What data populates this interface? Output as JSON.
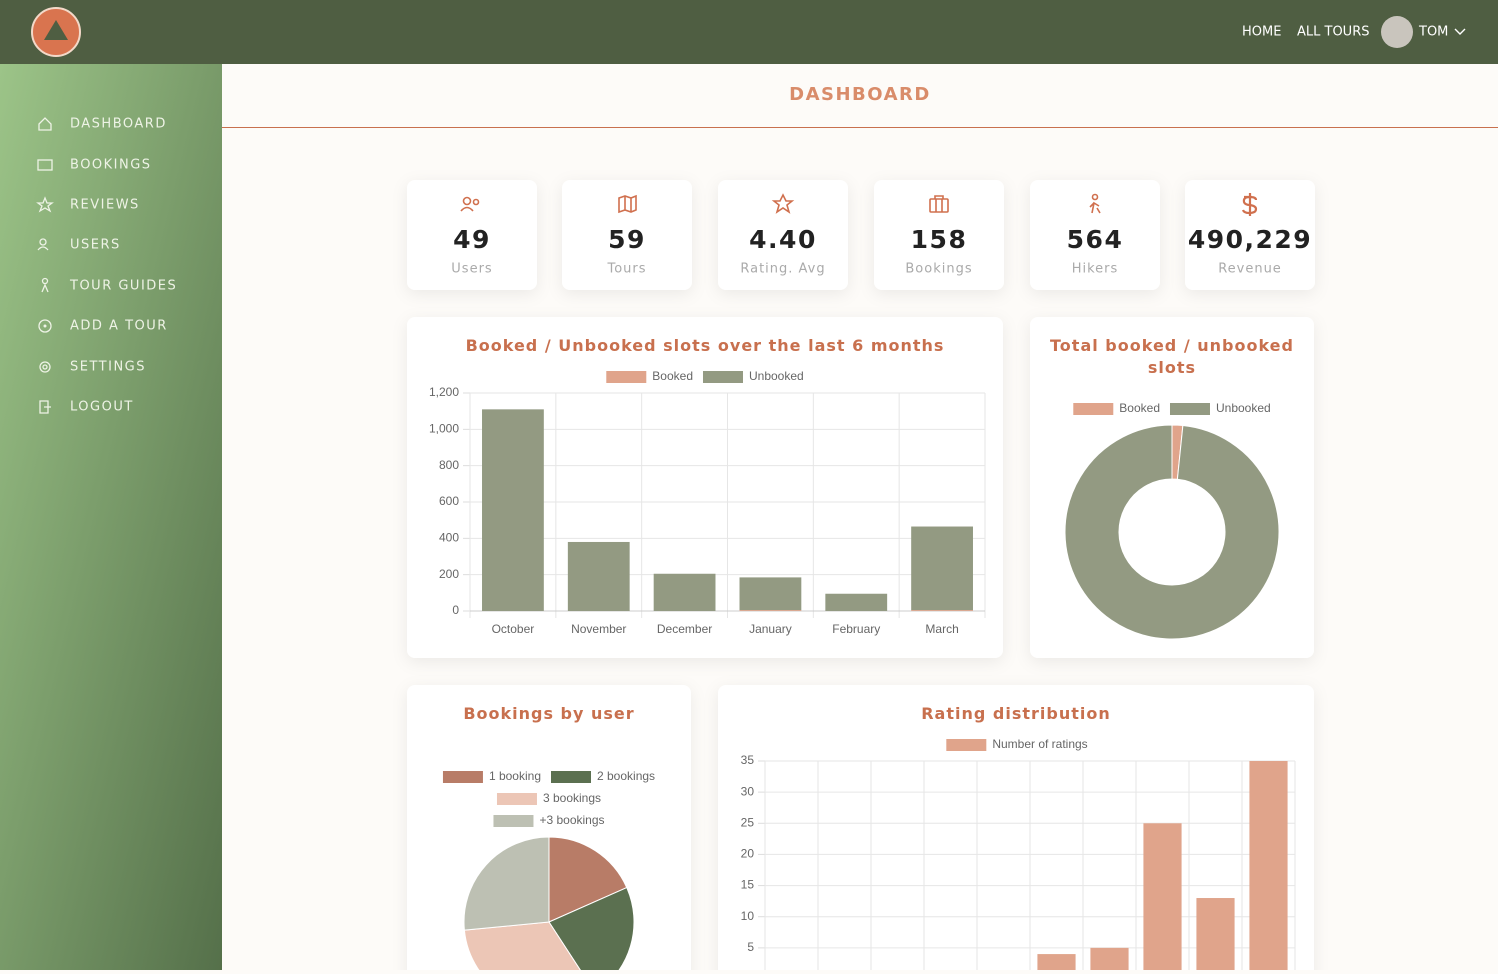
{
  "header": {
    "nav": [
      "HOME",
      "ALL TOURS"
    ],
    "user": "TOM"
  },
  "sidebar": {
    "items": [
      "DASHBOARD",
      "BOOKINGS",
      "REVIEWS",
      "USERS",
      "TOUR GUIDES",
      "ADD A TOUR",
      "SETTINGS",
      "LOGOUT"
    ]
  },
  "page_title": "DASHBOARD",
  "stats": [
    {
      "value": "49",
      "label": "Users"
    },
    {
      "value": "59",
      "label": "Tours"
    },
    {
      "value": "4.40",
      "label": "Rating. Avg"
    },
    {
      "value": "158",
      "label": "Bookings"
    },
    {
      "value": "564",
      "label": "Hikers"
    },
    {
      "value": "490,229",
      "label": "Revenue"
    }
  ],
  "chart_data": [
    {
      "type": "stacked-bar",
      "title": "Booked / Unbooked slots over the last 6 months",
      "categories": [
        "October",
        "November",
        "December",
        "January",
        "February",
        "March"
      ],
      "series": [
        {
          "name": "Booked",
          "color": "#e0a48b",
          "values": [
            0,
            0,
            0,
            5,
            0,
            5
          ]
        },
        {
          "name": "Unbooked",
          "color": "#939a82",
          "values": [
            1110,
            380,
            205,
            180,
            95,
            460
          ]
        }
      ],
      "ylim": [
        0,
        1200
      ],
      "yticks": [
        0,
        200,
        400,
        600,
        800,
        {
          "value": 1000,
          "label": "1,000"
        },
        {
          "value": 1200,
          "label": "1,200"
        }
      ],
      "grid": true
    },
    {
      "type": "donut",
      "title": "Total booked / unbooked slots",
      "categories": [
        "Booked",
        "Unbooked"
      ],
      "values": [
        40,
        2430
      ],
      "colors": [
        "#e0a48b",
        "#939a82"
      ]
    },
    {
      "type": "pie",
      "title": "Bookings by user",
      "categories": [
        "1 booking",
        "2 bookings",
        "3 bookings",
        "+3 bookings"
      ],
      "values": [
        9,
        11,
        16,
        13
      ],
      "colors": [
        "#b87c67",
        "#5b7050",
        "#ecc6b6",
        "#bdc0b3"
      ]
    },
    {
      "type": "bar",
      "title": "Rating distribution",
      "categories": [
        null,
        null,
        null,
        null,
        null,
        null,
        null,
        null,
        null,
        null
      ],
      "series": [
        {
          "name": "Number of ratings",
          "color": "#e0a48b",
          "values": [
            0,
            0,
            0,
            0,
            0,
            4,
            5,
            25,
            13,
            35
          ]
        }
      ],
      "ylim": [
        0,
        35
      ],
      "yticks": [
        5,
        10,
        15,
        20,
        25,
        30,
        35
      ],
      "grid": true
    }
  ]
}
